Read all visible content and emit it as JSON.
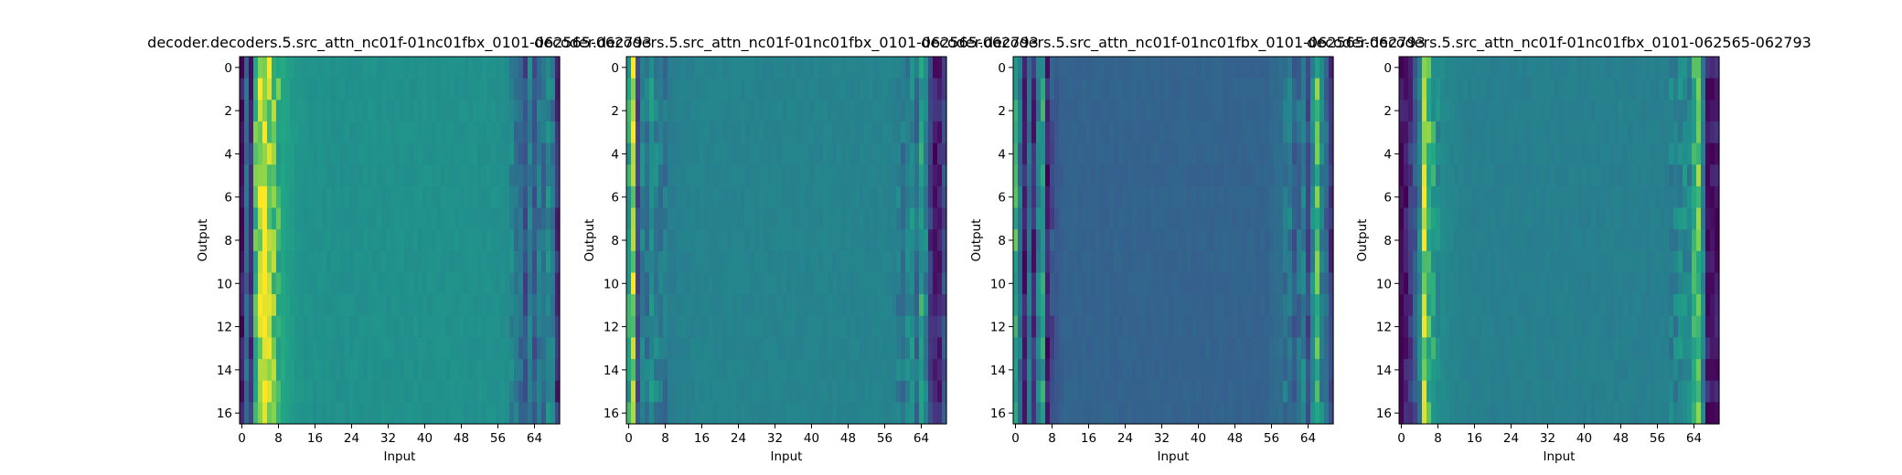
{
  "figure": {
    "panel_titles": [
      "decoder.decoders.5.src_attn_nc01f-01nc01fbx_0101-062565-062793",
      "decoder.decoders.5.src_attn_nc01f-01nc01fbx_0101-062565-062793",
      "decoder.decoders.5.src_attn_nc01f-01nc01fbx_0101-062565-062793",
      "decoder.decoders.5.src_attn_nc01f-01nc01fbx_0101-062565-062793"
    ]
  },
  "chart_data": [
    {
      "type": "heatmap",
      "title": "decoder.decoders.5.src_attn_nc01f-01nc01fbx_0101-062565-062793",
      "xlabel": "Input",
      "ylabel": "Output",
      "x_ticks": [
        0,
        8,
        16,
        24,
        32,
        40,
        48,
        56,
        64
      ],
      "y_ticks": [
        0,
        2,
        4,
        6,
        8,
        10,
        12,
        14,
        16
      ],
      "n_cols": 70,
      "n_rows": 17,
      "colormap": "viridis",
      "column_profile": [
        0.05,
        0.45,
        0.15,
        0.8,
        0.95,
        0.97,
        0.9,
        0.85,
        0.78,
        0.74,
        0.7,
        0.68,
        0.66,
        0.65,
        0.64,
        0.64,
        0.63,
        0.63,
        0.63,
        0.63,
        0.63,
        0.63,
        0.63,
        0.63,
        0.63,
        0.63,
        0.63,
        0.63,
        0.63,
        0.63,
        0.63,
        0.63,
        0.63,
        0.63,
        0.63,
        0.63,
        0.63,
        0.63,
        0.63,
        0.63,
        0.63,
        0.63,
        0.63,
        0.63,
        0.63,
        0.63,
        0.63,
        0.63,
        0.63,
        0.63,
        0.63,
        0.63,
        0.63,
        0.63,
        0.63,
        0.63,
        0.62,
        0.62,
        0.6,
        0.58,
        0.52,
        0.45,
        0.3,
        0.55,
        0.35,
        0.5,
        0.45,
        0.6,
        0.5,
        0.15
      ]
    },
    {
      "type": "heatmap",
      "title": "decoder.decoders.5.src_attn_nc01f-01nc01fbx_0101-062565-062793",
      "xlabel": "Input",
      "ylabel": "Output",
      "x_ticks": [
        0,
        8,
        16,
        24,
        32,
        40,
        48,
        56,
        64
      ],
      "y_ticks": [
        0,
        2,
        4,
        6,
        8,
        10,
        12,
        14,
        16
      ],
      "n_cols": 70,
      "n_rows": 17,
      "colormap": "viridis",
      "column_profile": [
        0.7,
        0.9,
        0.3,
        0.55,
        0.5,
        0.62,
        0.55,
        0.5,
        0.5,
        0.52,
        0.53,
        0.54,
        0.55,
        0.55,
        0.55,
        0.56,
        0.56,
        0.56,
        0.56,
        0.56,
        0.56,
        0.56,
        0.56,
        0.56,
        0.56,
        0.56,
        0.56,
        0.56,
        0.56,
        0.56,
        0.56,
        0.56,
        0.56,
        0.56,
        0.56,
        0.56,
        0.56,
        0.56,
        0.56,
        0.56,
        0.56,
        0.56,
        0.56,
        0.56,
        0.56,
        0.56,
        0.56,
        0.56,
        0.56,
        0.56,
        0.56,
        0.56,
        0.56,
        0.56,
        0.56,
        0.56,
        0.56,
        0.56,
        0.55,
        0.52,
        0.5,
        0.55,
        0.6,
        0.45,
        0.7,
        0.55,
        0.2,
        0.1,
        0.12,
        0.3
      ]
    },
    {
      "type": "heatmap",
      "title": "decoder.decoders.5.src_attn_nc01f-01nc01fbx_0101-062565-062793",
      "xlabel": "Input",
      "ylabel": "Output",
      "x_ticks": [
        0,
        8,
        16,
        24,
        32,
        40,
        48,
        56,
        64
      ],
      "y_ticks": [
        0,
        2,
        4,
        6,
        8,
        10,
        12,
        14,
        16
      ],
      "n_cols": 70,
      "n_rows": 17,
      "colormap": "viridis",
      "column_profile": [
        0.75,
        0.45,
        0.1,
        0.5,
        0.15,
        0.55,
        0.7,
        0.1,
        0.3,
        0.35,
        0.38,
        0.4,
        0.4,
        0.4,
        0.4,
        0.4,
        0.4,
        0.4,
        0.4,
        0.4,
        0.4,
        0.4,
        0.4,
        0.4,
        0.4,
        0.4,
        0.4,
        0.4,
        0.4,
        0.4,
        0.4,
        0.4,
        0.4,
        0.4,
        0.4,
        0.4,
        0.4,
        0.4,
        0.4,
        0.4,
        0.4,
        0.4,
        0.4,
        0.4,
        0.4,
        0.4,
        0.4,
        0.4,
        0.4,
        0.4,
        0.4,
        0.4,
        0.4,
        0.4,
        0.4,
        0.4,
        0.42,
        0.44,
        0.45,
        0.48,
        0.52,
        0.35,
        0.45,
        0.55,
        0.3,
        0.6,
        0.8,
        0.55,
        0.4,
        0.2
      ]
    },
    {
      "type": "heatmap",
      "title": "decoder.decoders.5.src_attn_nc01f-01nc01fbx_0101-062565-062793",
      "xlabel": "Input",
      "ylabel": "Output",
      "x_ticks": [
        0,
        8,
        16,
        24,
        32,
        40,
        48,
        56,
        64
      ],
      "y_ticks": [
        0,
        2,
        4,
        6,
        8,
        10,
        12,
        14,
        16
      ],
      "n_cols": 70,
      "n_rows": 17,
      "colormap": "viridis",
      "column_profile": [
        0.05,
        0.1,
        0.2,
        0.35,
        0.55,
        0.9,
        0.8,
        0.7,
        0.62,
        0.6,
        0.58,
        0.57,
        0.56,
        0.55,
        0.55,
        0.54,
        0.54,
        0.54,
        0.54,
        0.54,
        0.54,
        0.54,
        0.54,
        0.54,
        0.54,
        0.54,
        0.54,
        0.54,
        0.54,
        0.54,
        0.54,
        0.54,
        0.54,
        0.54,
        0.54,
        0.54,
        0.54,
        0.54,
        0.54,
        0.54,
        0.54,
        0.54,
        0.54,
        0.54,
        0.54,
        0.54,
        0.54,
        0.54,
        0.54,
        0.54,
        0.54,
        0.54,
        0.54,
        0.54,
        0.54,
        0.54,
        0.54,
        0.54,
        0.54,
        0.55,
        0.56,
        0.58,
        0.6,
        0.55,
        0.75,
        0.85,
        0.55,
        0.1,
        0.05,
        0.1
      ]
    }
  ]
}
